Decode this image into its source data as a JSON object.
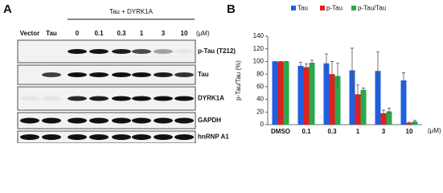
{
  "panel_a": {
    "label": "A",
    "group_label": "Tau + DYRK1A",
    "unit": "(μM)",
    "lanes": [
      "Vector",
      "Tau",
      "0",
      "0.1",
      "0.3",
      "1",
      "3",
      "10"
    ],
    "rows": [
      "p-Tau (T212)",
      "Tau",
      "DYRK1A",
      "GAPDH",
      "hnRNP A1"
    ]
  },
  "chart_data": {
    "type": "bar",
    "panel_label": "B",
    "ylabel": "p-Tau/Tau (%)",
    "xlabel": "(μM)",
    "categories": [
      "DMSO",
      "0.1",
      "0.3",
      "1",
      "3",
      "10"
    ],
    "series": [
      {
        "name": "Tau",
        "color": "#1f5fe0",
        "values": [
          100,
          93,
          97,
          86,
          85,
          70
        ],
        "errors": [
          0,
          6,
          15,
          35,
          30,
          12
        ]
      },
      {
        "name": "p-Tau",
        "color": "#e02020",
        "values": [
          100,
          91,
          80,
          48,
          18,
          3
        ],
        "errors": [
          0,
          5,
          20,
          15,
          5,
          1
        ]
      },
      {
        "name": "p-Tau/Tau",
        "color": "#2aa84a",
        "values": [
          100,
          98,
          77,
          55,
          21,
          5
        ],
        "errors": [
          0,
          4,
          20,
          3,
          5,
          2
        ]
      }
    ],
    "ylim": [
      0,
      140
    ],
    "yticks": [
      0,
      20,
      40,
      60,
      80,
      100,
      120,
      140
    ]
  }
}
